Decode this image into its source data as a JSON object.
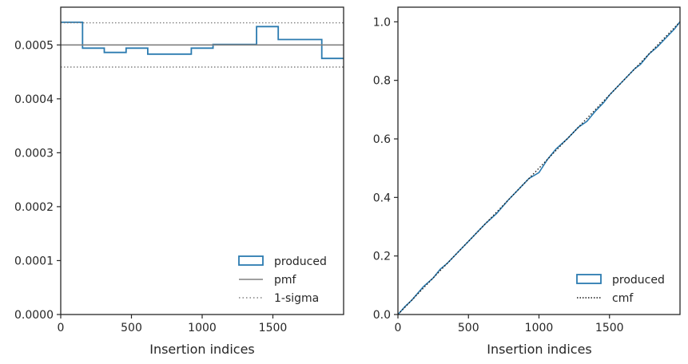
{
  "chart_data": [
    {
      "type": "step",
      "xlabel": "Insertion indices",
      "ylabel": "",
      "xlim": [
        0,
        2000
      ],
      "ylim": [
        0,
        0.00057
      ],
      "x_ticks": [
        0,
        500,
        1000,
        1500
      ],
      "x_tick_labels": [
        "0",
        "500",
        "1000",
        "1500"
      ],
      "y_ticks": [
        0,
        0.0001,
        0.0002,
        0.0003,
        0.0004,
        0.0005
      ],
      "y_tick_labels": [
        "0.0000",
        "0.0001",
        "0.0002",
        "0.0003",
        "0.0004",
        "0.0005"
      ],
      "series": [
        {
          "name": "produced",
          "style": "step-histogram",
          "color": "#2b7bb0",
          "bin_edges": [
            0,
            154,
            308,
            462,
            615,
            923,
            1077,
            1385,
            1538,
            1846,
            2000
          ],
          "values": [
            0.000542,
            0.000494,
            0.000486,
            0.000494,
            0.000483,
            0.000494,
            0.000501,
            0.000534,
            0.00051,
            0.000475
          ]
        },
        {
          "name": "pmf",
          "style": "solid",
          "color": "#808080",
          "x": [
            0,
            2000
          ],
          "y": [
            0.0005,
            0.0005
          ]
        },
        {
          "name": "1-sigma",
          "style": "dotted",
          "color": "#808080",
          "x": [
            0,
            2000
          ],
          "y": [
            0.000541,
            0.000541
          ]
        },
        {
          "name": "",
          "style": "dotted",
          "color": "#808080",
          "x": [
            0,
            2000
          ],
          "y": [
            0.000459,
            0.000459
          ]
        }
      ],
      "legend_entries": [
        "produced",
        "pmf",
        "1-sigma"
      ],
      "legend_position": "lower-right"
    },
    {
      "type": "line",
      "xlabel": "Insertion indices",
      "ylabel": "",
      "xlim": [
        0,
        2000
      ],
      "ylim": [
        0,
        1.05
      ],
      "x_ticks": [
        0,
        500,
        1000,
        1500
      ],
      "x_tick_labels": [
        "0",
        "500",
        "1000",
        "1500"
      ],
      "y_ticks": [
        0,
        0.2,
        0.4,
        0.6,
        0.8,
        1.0
      ],
      "y_tick_labels": [
        "0.0",
        "0.2",
        "0.4",
        "0.6",
        "0.8",
        "1.0"
      ],
      "series": [
        {
          "name": "produced",
          "style": "solid",
          "color": "#2b7bb0",
          "x": [
            0,
            50,
            100,
            180,
            250,
            300,
            350,
            420,
            500,
            560,
            620,
            700,
            780,
            860,
            930,
            1000,
            1060,
            1120,
            1200,
            1280,
            1340,
            1400,
            1460,
            1500,
            1560,
            1620,
            1680,
            1720,
            1780,
            1840,
            1900,
            1960,
            2000
          ],
          "y": [
            0,
            0.027,
            0.05,
            0.095,
            0.125,
            0.155,
            0.175,
            0.21,
            0.25,
            0.28,
            0.31,
            0.345,
            0.39,
            0.43,
            0.465,
            0.485,
            0.53,
            0.565,
            0.6,
            0.64,
            0.66,
            0.695,
            0.725,
            0.75,
            0.78,
            0.81,
            0.84,
            0.855,
            0.89,
            0.915,
            0.945,
            0.975,
            1.0
          ]
        },
        {
          "name": "cmf",
          "style": "dotted",
          "color": "#1a1a1a",
          "x": [
            0,
            2000
          ],
          "y": [
            0,
            1.0
          ]
        }
      ],
      "legend_entries": [
        "produced",
        "cmf"
      ],
      "legend_position": "lower-right"
    }
  ]
}
